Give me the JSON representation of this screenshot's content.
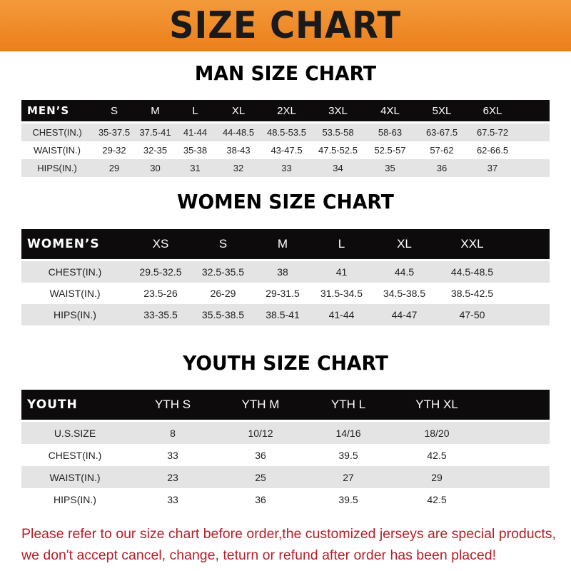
{
  "banner": {
    "title": "SIZE CHART",
    "color": "#ef8a2a"
  },
  "men": {
    "title": "MAN SIZE CHART",
    "header": [
      "MEN’S",
      "S",
      "M",
      "L",
      "XL",
      "2XL",
      "3XL",
      "4XL",
      "5XL",
      "6XL"
    ],
    "rows": [
      [
        "CHEST(IN.)",
        "35-37.5",
        "37.5-41",
        "41-44",
        "44-48.5",
        "48.5-53.5",
        "53.5-58",
        "58-63",
        "63-67.5",
        "67.5-72"
      ],
      [
        "WAIST(IN.)",
        "29-32",
        "32-35",
        "35-38",
        "38-43",
        "43-47.5",
        "47.5-52.5",
        "52.5-57",
        "57-62",
        "62-66.5"
      ],
      [
        "HIPS(IN.)",
        "29",
        "30",
        "31",
        "32",
        "33",
        "34",
        "35",
        "36",
        "37"
      ]
    ]
  },
  "women": {
    "title": "WOMEN SIZE CHART",
    "header": [
      "WOMEN’S",
      "XS",
      "S",
      "M",
      "L",
      "XL",
      "XXL"
    ],
    "rows": [
      [
        "CHEST(IN.)",
        "29.5-32.5",
        "32.5-35.5",
        "38",
        "41",
        "44.5",
        "44.5-48.5"
      ],
      [
        "WAIST(IN.)",
        "23.5-26",
        "26-29",
        "29-31.5",
        "31.5-34.5",
        "34.5-38.5",
        "38.5-42.5"
      ],
      [
        "HIPS(IN.)",
        "33-35.5",
        "35.5-38.5",
        "38.5-41",
        "41-44",
        "44-47",
        "47-50"
      ]
    ]
  },
  "youth": {
    "title": "YOUTH SIZE CHART",
    "header": [
      "YOUTH",
      "YTH S",
      "YTH M",
      "YTH L",
      "YTH XL"
    ],
    "rows": [
      [
        "U.S.SIZE",
        "8",
        "10/12",
        "14/16",
        "18/20"
      ],
      [
        "CHEST(IN.)",
        "33",
        "36",
        "39.5",
        "42.5"
      ],
      [
        "WAIST(IN.)",
        "23",
        "25",
        "27",
        "29"
      ],
      [
        "HIPS(IN.)",
        "33",
        "36",
        "39.5",
        "42.5"
      ]
    ]
  },
  "notice": {
    "line1": "Please refer to our size chart before order,the customized jerseys are special products,",
    "line2": "we don't accept cancel, change, teturn or refund after order has been placed!"
  }
}
